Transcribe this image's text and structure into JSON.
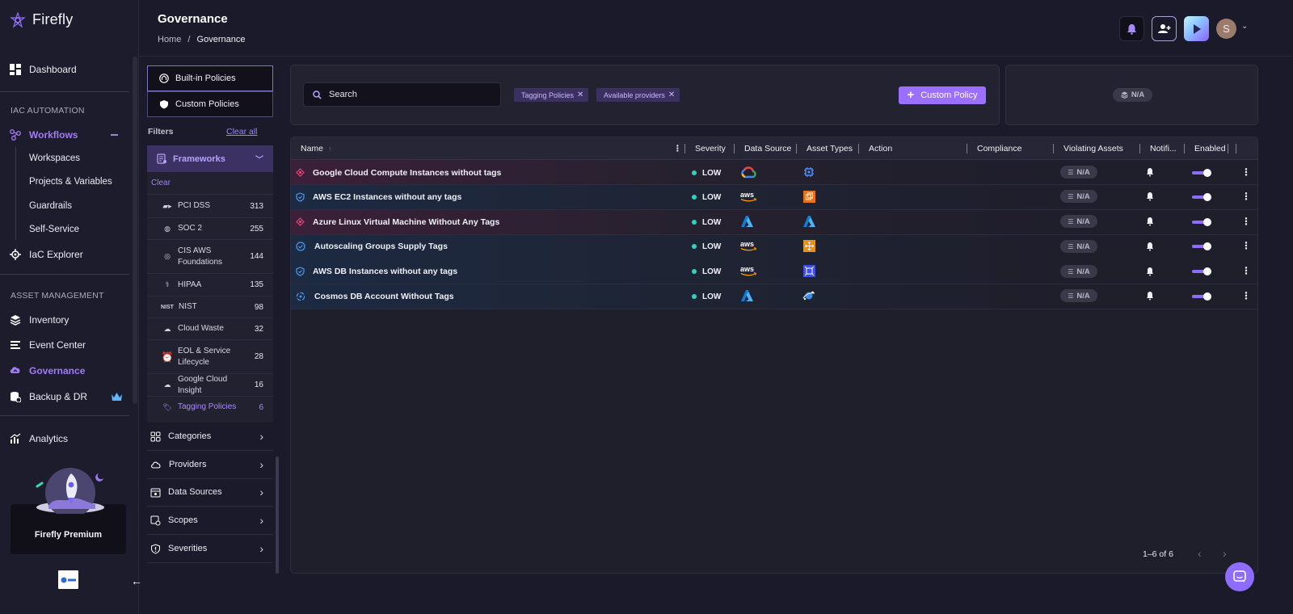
{
  "brand": {
    "name": "Firefly"
  },
  "header": {
    "title": "Governance",
    "breadcrumb": [
      "Home",
      "/",
      "Governance"
    ],
    "avatar_initial": "S"
  },
  "sidebar": {
    "dashboard": "Dashboard",
    "section_iac": "IAC AUTOMATION",
    "workflows": "Workflows",
    "workflow_subitems": [
      "Workspaces",
      "Projects & Variables",
      "Guardrails",
      "Self-Service"
    ],
    "iac_explorer": "IaC Explorer",
    "section_asset": "ASSET MANAGEMENT",
    "inventory": "Inventory",
    "event_center": "Event Center",
    "governance": "Governance",
    "backup": "Backup & DR",
    "analytics": "Analytics",
    "premium": "Firefly Premium"
  },
  "filters": {
    "tabs": [
      "Built-in Policies",
      "Custom Policies"
    ],
    "label": "Filters",
    "clear_all": "Clear all",
    "frameworks_title": "Frameworks",
    "clear": "Clear",
    "frameworks": [
      {
        "label": "PCI DSS",
        "count": "313",
        "icon": "pci-icon"
      },
      {
        "label": "SOC 2",
        "count": "255",
        "icon": "soc-icon"
      },
      {
        "label": "CIS AWS Foundations",
        "count": "144",
        "icon": "cis-icon"
      },
      {
        "label": "HIPAA",
        "count": "135",
        "icon": "hipaa-icon"
      },
      {
        "label": "NIST",
        "count": "98",
        "icon": "nist-icon"
      },
      {
        "label": "Cloud Waste",
        "count": "32",
        "icon": "cloud-waste-icon"
      },
      {
        "label": "EOL & Service Lifecycle",
        "count": "28",
        "icon": "alarm-clock-icon"
      },
      {
        "label": "Google Cloud Insight",
        "count": "16",
        "icon": "cloud-icon"
      },
      {
        "label": "Tagging Policies",
        "count": "6",
        "icon": "tag-icon"
      }
    ],
    "accordions": [
      "Categories",
      "Providers",
      "Data Sources",
      "Scopes",
      "Severities"
    ]
  },
  "toolbar": {
    "search_placeholder": "Search",
    "chips": [
      "Tagging Policies",
      "Available providers"
    ],
    "custom_policy": "Custom Policy",
    "na_value": "N/A"
  },
  "table": {
    "columns": [
      "Name",
      "Severity",
      "Data Source",
      "Asset Types",
      "Action",
      "Compliance",
      "Violating Assets",
      "Notifi...",
      "Enabled"
    ],
    "rows": [
      {
        "name": "Google Cloud Compute Instances without tags",
        "severity": "LOW",
        "source": "gcp",
        "asset": "gcp-compute",
        "violating": "N/A",
        "enabled": true,
        "tint": "pink"
      },
      {
        "name": "AWS EC2 Instances without any tags",
        "severity": "LOW",
        "source": "aws",
        "asset": "aws-ec2",
        "violating": "N/A",
        "enabled": true,
        "tint": "blue"
      },
      {
        "name": "Azure Linux Virtual Machine Without Any Tags",
        "severity": "LOW",
        "source": "azure",
        "asset": "azure-vm",
        "violating": "N/A",
        "enabled": true,
        "tint": "pink"
      },
      {
        "name": "Autoscaling Groups Supply Tags",
        "severity": "LOW",
        "source": "aws",
        "asset": "aws-autoscaling",
        "violating": "N/A",
        "enabled": true,
        "tint": "blue"
      },
      {
        "name": "AWS DB Instances without any tags",
        "severity": "LOW",
        "source": "aws",
        "asset": "aws-rds",
        "violating": "N/A",
        "enabled": true,
        "tint": "blue"
      },
      {
        "name": "Cosmos DB Account Without Tags",
        "severity": "LOW",
        "source": "azure",
        "asset": "azure-cosmos",
        "violating": "N/A",
        "enabled": true,
        "tint": "blue"
      }
    ],
    "pagination": "1–6 of 6"
  },
  "colors": {
    "accent": "#9b6fff",
    "severity_low": "#2dd4c2",
    "background": "#1b1a2b"
  }
}
